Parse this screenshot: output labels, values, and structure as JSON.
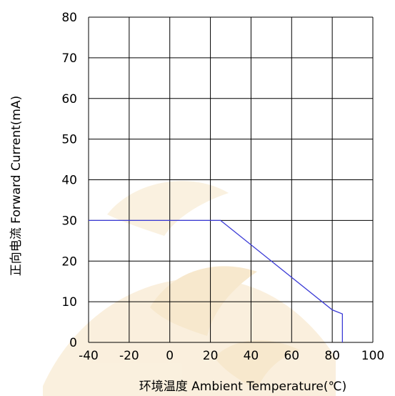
{
  "chart_data": {
    "type": "line",
    "title": "",
    "xlabel": "环境温度  Ambient Temperature(℃)",
    "ylabel": "正向电流 Forward Current(mA)",
    "xlim": [
      -40,
      100
    ],
    "ylim": [
      0,
      80
    ],
    "x_ticks": [
      -40,
      -20,
      0,
      20,
      40,
      60,
      80,
      100
    ],
    "y_ticks": [
      0,
      10,
      20,
      30,
      40,
      50,
      60,
      70,
      80
    ],
    "x_tick_labels": [
      "-40",
      "-20",
      "0",
      "20",
      "40",
      "60",
      "80",
      "100"
    ],
    "y_tick_labels": [
      "0",
      "10",
      "20",
      "30",
      "40",
      "50",
      "60",
      "70",
      "80"
    ],
    "grid": true,
    "series": [
      {
        "color": "#3b3bd6",
        "x": [
          -40,
          25,
          80,
          85,
          85
        ],
        "y": [
          30,
          30,
          8,
          7,
          0
        ]
      }
    ]
  },
  "colors": {
    "grid": "#000000",
    "watermark": "#f3dcb4"
  },
  "watermark_icon": "logo-watermark-icon"
}
